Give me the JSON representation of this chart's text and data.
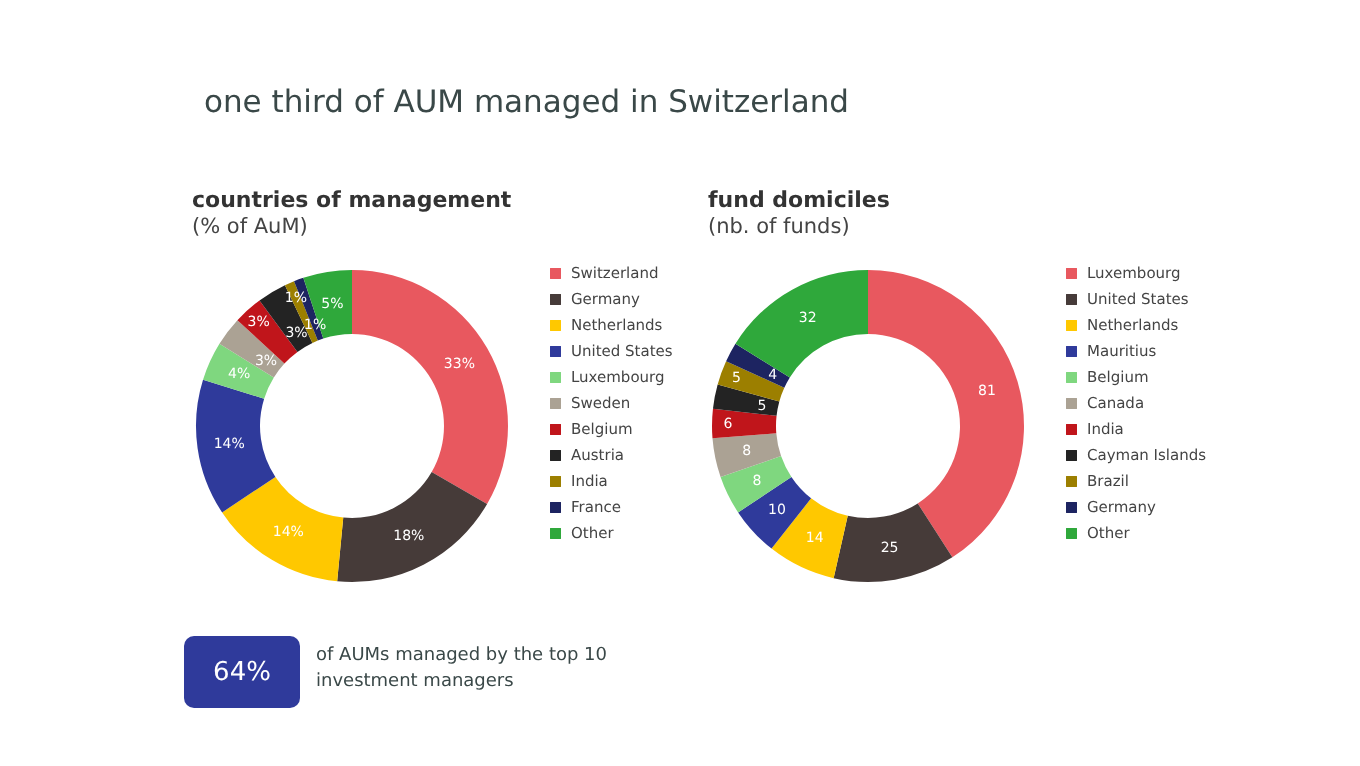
{
  "chart_data": [
    {
      "type": "other",
      "title": "one third of AUM managed in Switzerland",
      "annotations": [
        "64%",
        "of AUMs managed by the top 10 investment managers"
      ]
    },
    {
      "type": "donut",
      "title": "countries of management",
      "subtitle": "(% of AuM)",
      "legend": "right",
      "categories": [
        "Switzerland",
        "Germany",
        "Netherlands",
        "United States",
        "Luxembourg",
        "Sweden",
        "Belgium",
        "Austria",
        "India",
        "France",
        "Other"
      ],
      "values": [
        33,
        18,
        14,
        14,
        4,
        3,
        3,
        3,
        1,
        1,
        5
      ],
      "value_labels": [
        "33%",
        "18%",
        "14%",
        "14%",
        "4%",
        "3%",
        "3%",
        "3%",
        "1%",
        "1%",
        "5%"
      ],
      "colors": [
        "#e8585f",
        "#463b39",
        "#ffc800",
        "#2f3a9b",
        "#7fd77f",
        "#aba294",
        "#c0151b",
        "#232323",
        "#9c7f00",
        "#1d2461",
        "#2fa83b"
      ]
    },
    {
      "type": "donut",
      "title": "fund domiciles",
      "subtitle": "(nb. of funds)",
      "legend": "right",
      "data_labels": true,
      "categories": [
        "Luxembourg",
        "United States",
        "Netherlands",
        "Mauritius",
        "Belgium",
        "Canada",
        "India",
        "Cayman Islands",
        "Brazil",
        "Germany",
        "Other"
      ],
      "values": [
        81,
        25,
        14,
        10,
        8,
        8,
        6,
        5,
        5,
        4,
        32
      ],
      "colors": [
        "#e8585f",
        "#463b39",
        "#ffc800",
        "#2f3a9b",
        "#7fd77f",
        "#aba294",
        "#c0151b",
        "#232323",
        "#9c7f00",
        "#1d2461",
        "#2fa83b"
      ]
    }
  ]
}
